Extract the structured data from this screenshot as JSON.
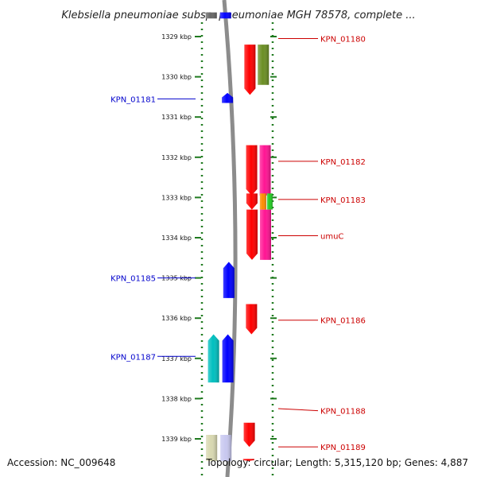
{
  "title": "Klebsiella pneumoniae subsp. pneumoniae MGH 78578, complete ...",
  "ruler": {
    "unit": "kbp",
    "start_kbp": 1328.4,
    "end_kbp": 1339.55,
    "ticks": [
      {
        "kbp": 1329,
        "label": "1329 kbp"
      },
      {
        "kbp": 1330,
        "label": "1330 kbp"
      },
      {
        "kbp": 1331,
        "label": "1331 kbp"
      },
      {
        "kbp": 1332,
        "label": "1332 kbp"
      },
      {
        "kbp": 1333,
        "label": "1333 kbp"
      },
      {
        "kbp": 1334,
        "label": "1334 kbp"
      },
      {
        "kbp": 1335,
        "label": "1335 kbp"
      },
      {
        "kbp": 1336,
        "label": "1336 kbp"
      },
      {
        "kbp": 1337,
        "label": "1337 kbp"
      },
      {
        "kbp": 1338,
        "label": "1338 kbp"
      },
      {
        "kbp": 1339,
        "label": "1339 kbp"
      }
    ]
  },
  "colors": {
    "reverse_label": "#0000cc",
    "forward_label": "#cc0000",
    "backbone": "#8c8c8c",
    "ruler": "#1f7a1f"
  },
  "features": [
    {
      "track": "rev_outer",
      "start_kbp": 1328.4,
      "end_kbp": 1328.55,
      "color": "#666666",
      "arrow": "none"
    },
    {
      "track": "rev_inner",
      "start_kbp": 1328.4,
      "end_kbp": 1328.55,
      "color": "#0000ff",
      "arrow": "none"
    },
    {
      "track": "fwd_inner",
      "start_kbp": 1329.2,
      "end_kbp": 1330.45,
      "color": "#ff0000",
      "arrow": "down"
    },
    {
      "track": "fwd_outer",
      "start_kbp": 1329.2,
      "end_kbp": 1330.2,
      "color": "#6b8e23",
      "arrow": "none"
    },
    {
      "track": "rev_inner",
      "start_kbp": 1330.4,
      "end_kbp": 1330.65,
      "color": "#0000ff",
      "arrow": "up"
    },
    {
      "track": "fwd_inner",
      "start_kbp": 1331.7,
      "end_kbp": 1332.95,
      "color": "#ff0000",
      "arrow": "down"
    },
    {
      "track": "fwd_outer",
      "start_kbp": 1331.7,
      "end_kbp": 1332.95,
      "color": "#ff1493",
      "arrow": "none"
    },
    {
      "track": "fwd_inner",
      "start_kbp": 1332.9,
      "end_kbp": 1333.3,
      "color": "#ff0000",
      "arrow": "down"
    },
    {
      "track": "fwd_outer_a",
      "start_kbp": 1332.9,
      "end_kbp": 1333.3,
      "color": "#ff8c00",
      "arrow": "none"
    },
    {
      "track": "fwd_outer_b",
      "start_kbp": 1332.9,
      "end_kbp": 1333.3,
      "color": "#22cc22",
      "arrow": "none"
    },
    {
      "track": "fwd_inner",
      "start_kbp": 1333.3,
      "end_kbp": 1334.55,
      "color": "#ff0000",
      "arrow": "down"
    },
    {
      "track": "fwd_outer",
      "start_kbp": 1333.3,
      "end_kbp": 1334.55,
      "color": "#ff1493",
      "arrow": "none"
    },
    {
      "track": "rev_inner",
      "start_kbp": 1334.6,
      "end_kbp": 1335.5,
      "color": "#0000ff",
      "arrow": "up"
    },
    {
      "track": "fwd_inner",
      "start_kbp": 1335.65,
      "end_kbp": 1336.4,
      "color": "#ff0000",
      "arrow": "down"
    },
    {
      "track": "rev_outer",
      "start_kbp": 1336.4,
      "end_kbp": 1337.6,
      "color": "#00bfbf",
      "arrow": "up"
    },
    {
      "track": "rev_inner",
      "start_kbp": 1336.4,
      "end_kbp": 1337.6,
      "color": "#0000ff",
      "arrow": "up"
    },
    {
      "track": "fwd_inner",
      "start_kbp": 1338.6,
      "end_kbp": 1339.2,
      "color": "#ff0000",
      "arrow": "down"
    },
    {
      "track": "fwd_inner",
      "start_kbp": 1339.5,
      "end_kbp": 1339.55,
      "color": "#ff0000",
      "arrow": "down"
    },
    {
      "track": "rev_outer",
      "start_kbp": 1338.9,
      "end_kbp": 1339.55,
      "color": "#d8d8b0",
      "arrow": "none"
    },
    {
      "track": "rev_inner",
      "start_kbp": 1338.9,
      "end_kbp": 1339.55,
      "color": "#c8c8f0",
      "arrow": "none"
    }
  ],
  "labels": [
    {
      "text": "KPN_01180",
      "strand": "forward",
      "kbp": 1329.05,
      "target_kbp": 1329.05
    },
    {
      "text": "KPN_01181",
      "strand": "reverse",
      "kbp": 1330.55,
      "target_kbp": 1330.55
    },
    {
      "text": "KPN_01182",
      "strand": "forward",
      "kbp": 1332.1,
      "target_kbp": 1332.1
    },
    {
      "text": "KPN_01183",
      "strand": "forward",
      "kbp": 1333.05,
      "target_kbp": 1333.05
    },
    {
      "text": "umuC",
      "strand": "forward",
      "kbp": 1333.95,
      "target_kbp": 1333.95
    },
    {
      "text": "KPN_01185",
      "strand": "reverse",
      "kbp": 1335.0,
      "target_kbp": 1335.0
    },
    {
      "text": "KPN_01186",
      "strand": "forward",
      "kbp": 1336.05,
      "target_kbp": 1336.05
    },
    {
      "text": "KPN_01187",
      "strand": "reverse",
      "kbp": 1336.95,
      "target_kbp": 1336.95
    },
    {
      "text": "KPN_01188",
      "strand": "forward",
      "kbp": 1338.3,
      "target_kbp": 1338.25
    },
    {
      "text": "KPN_01189",
      "strand": "forward",
      "kbp": 1339.2,
      "target_kbp": 1339.2
    }
  ],
  "footer": {
    "accession": "Accession: NC_009648",
    "summary": "Topology: circular; Length: 5,315,120 bp; Genes: 4,887"
  }
}
